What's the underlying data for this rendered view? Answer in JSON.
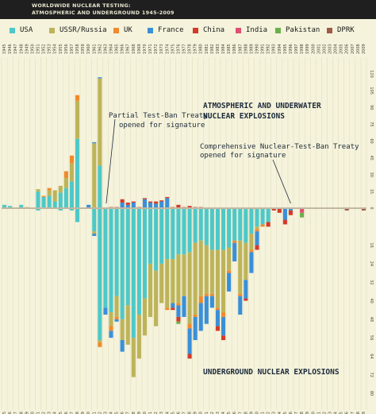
{
  "header": {
    "title_line1": "WORLDWIDE NUCLEAR TESTING:",
    "title_line2": "ATMOSPHERIC AND UNDERGROUND 1945-2009"
  },
  "legend": [
    {
      "label": "USA",
      "color": "#4ec8c8"
    },
    {
      "label": "USSR/Russia",
      "color": "#bdb45a"
    },
    {
      "label": "UK",
      "color": "#f08a2c"
    },
    {
      "label": "France",
      "color": "#3a8fd8"
    },
    {
      "label": "China",
      "color": "#d33a2a"
    },
    {
      "label": "India",
      "color": "#e04f72"
    },
    {
      "label": "Pakistan",
      "color": "#6ab04c"
    },
    {
      "label": "DPRK",
      "color": "#a05a48"
    }
  ],
  "annotations": {
    "atmospheric_line1": "ATMOSPHERIC AND UNDERWATER",
    "atmospheric_line2": "NUCLEAR EXPLOSIONS",
    "ptbt_line1": "Partial Test-Ban Treaty",
    "ptbt_line2": "opened for signature",
    "ctbt_line1": "Comprehensive Nuclear-Test-Ban Treaty",
    "ctbt_line2": "opened for signature",
    "underground": "UNDERGROUND NUCLEAR EXPLOSIONS"
  },
  "chart_data": {
    "type": "bar",
    "stacked": true,
    "diverging": true,
    "x": [
      1945,
      1946,
      1947,
      1948,
      1949,
      1950,
      1951,
      1952,
      1953,
      1954,
      1955,
      1956,
      1957,
      1958,
      1959,
      1960,
      1961,
      1962,
      1963,
      1964,
      1965,
      1966,
      1967,
      1968,
      1969,
      1970,
      1971,
      1972,
      1973,
      1974,
      1975,
      1976,
      1977,
      1978,
      1979,
      1980,
      1981,
      1982,
      1983,
      1984,
      1985,
      1986,
      1987,
      1988,
      1989,
      1990,
      1991,
      1992,
      1993,
      1994,
      1995,
      1996,
      1997,
      1998,
      1999,
      2000,
      2001,
      2002,
      2003,
      2004,
      2005,
      2006,
      2007,
      2008,
      2009
    ],
    "x_ticks": [
      "1945",
      "1946",
      "1947",
      "1948",
      "1949",
      "1950",
      "1951",
      "1952",
      "1953",
      "1954",
      "1955",
      "1956",
      "1957",
      "1958",
      "1959",
      "1960",
      "1961",
      "1962",
      "1963",
      "1964",
      "1965",
      "1966",
      "1967",
      "1968",
      "1969",
      "1970",
      "1971",
      "1972",
      "1973",
      "1974",
      "1975",
      "1976",
      "1977",
      "1978",
      "1979",
      "1980",
      "1981",
      "1982",
      "1983",
      "1984",
      "1985",
      "1986",
      "1987",
      "1988",
      "1989",
      "1990",
      "1991",
      "1992",
      "1993",
      "1994",
      "1995",
      "1996",
      "1997",
      "1998",
      "1999",
      "2000",
      "2001",
      "2002",
      "2003",
      "2004",
      "2005",
      "2006",
      "2007",
      "2008",
      "2009"
    ],
    "y_ticks_up": [
      "120",
      "105",
      "90",
      "75",
      "60",
      "45",
      "30",
      "15",
      "0"
    ],
    "y_ticks_down": [
      "16",
      "24",
      "32",
      "40",
      "48",
      "56",
      "64",
      "72",
      "80"
    ],
    "ylim_up": [
      0,
      120
    ],
    "ylim_down": [
      0,
      80
    ],
    "series_order": [
      "USA",
      "USSR/Russia",
      "UK",
      "France",
      "China",
      "India",
      "Pakistan",
      "DPRK"
    ],
    "atmospheric": [
      [
        3,
        0,
        0,
        0,
        0,
        0,
        0,
        0
      ],
      [
        2,
        0,
        0,
        0,
        0,
        0,
        0,
        0
      ],
      [
        0,
        0,
        0,
        0,
        0,
        0,
        0,
        0
      ],
      [
        3,
        0,
        0,
        0,
        0,
        0,
        0,
        0
      ],
      [
        0,
        1,
        0,
        0,
        0,
        0,
        0,
        0
      ],
      [
        0,
        0,
        0,
        0,
        0,
        0,
        0,
        0
      ],
      [
        15,
        2,
        0,
        0,
        0,
        0,
        0,
        0
      ],
      [
        10,
        0,
        1,
        0,
        0,
        0,
        0,
        0
      ],
      [
        11,
        5,
        2,
        0,
        0,
        0,
        0,
        0
      ],
      [
        6,
        10,
        0,
        0,
        0,
        0,
        0,
        0
      ],
      [
        14,
        6,
        0,
        0,
        0,
        0,
        0,
        0
      ],
      [
        18,
        9,
        6,
        0,
        0,
        0,
        0,
        0
      ],
      [
        24,
        16,
        7,
        0,
        0,
        0,
        0,
        0
      ],
      [
        62,
        34,
        5,
        0,
        0,
        0,
        0,
        0
      ],
      [
        0,
        0,
        0,
        0,
        0,
        0,
        0,
        0
      ],
      [
        0,
        0,
        0,
        3,
        0,
        0,
        0,
        0
      ],
      [
        0,
        58,
        0,
        1,
        0,
        0,
        0,
        0
      ],
      [
        38,
        78,
        0,
        1,
        0,
        0,
        0,
        0
      ],
      [
        0,
        0,
        0,
        0,
        0,
        0,
        0,
        0
      ],
      [
        0,
        0,
        0,
        0,
        1,
        0,
        0,
        0
      ],
      [
        0,
        0,
        0,
        0,
        1,
        0,
        0,
        0
      ],
      [
        0,
        0,
        0,
        5,
        3,
        0,
        0,
        0
      ],
      [
        0,
        0,
        0,
        3,
        2,
        0,
        0,
        0
      ],
      [
        0,
        0,
        0,
        5,
        1,
        0,
        0,
        0
      ],
      [
        0,
        0,
        0,
        0,
        1,
        0,
        0,
        0
      ],
      [
        0,
        0,
        0,
        8,
        1,
        0,
        0,
        0
      ],
      [
        0,
        0,
        0,
        5,
        1,
        0,
        0,
        0
      ],
      [
        0,
        0,
        0,
        4,
        2,
        0,
        0,
        0
      ],
      [
        0,
        0,
        0,
        6,
        1,
        0,
        0,
        0
      ],
      [
        0,
        0,
        0,
        9,
        1,
        0,
        0,
        0
      ],
      [
        0,
        0,
        0,
        0,
        1,
        0,
        0,
        0
      ],
      [
        0,
        0,
        0,
        0,
        3,
        0,
        0,
        0
      ],
      [
        0,
        0,
        0,
        0,
        1,
        0,
        0,
        0
      ],
      [
        0,
        0,
        0,
        0,
        2,
        0,
        0,
        0
      ],
      [
        0,
        0,
        0,
        0,
        1,
        0,
        0,
        0
      ],
      [
        0,
        0,
        0,
        0,
        1,
        0,
        0,
        0
      ]
    ],
    "underground": [
      [
        0,
        0,
        0,
        0,
        0,
        0,
        0,
        0
      ],
      [
        0,
        0,
        0,
        0,
        0,
        0,
        0,
        0
      ],
      [
        0,
        0,
        0,
        0,
        0,
        0,
        0,
        0
      ],
      [
        0,
        0,
        0,
        0,
        0,
        0,
        0,
        0
      ],
      [
        0,
        0,
        0,
        0,
        0,
        0,
        0,
        0
      ],
      [
        0,
        0,
        0,
        0,
        0,
        0,
        0,
        0
      ],
      [
        1,
        0,
        0,
        0,
        0,
        0,
        0,
        0
      ],
      [
        0,
        0,
        0,
        0,
        0,
        0,
        0,
        0
      ],
      [
        0,
        0,
        0,
        0,
        0,
        0,
        0,
        0
      ],
      [
        0,
        0,
        0,
        0,
        0,
        0,
        0,
        0
      ],
      [
        1,
        0,
        0,
        0,
        0,
        0,
        0,
        0
      ],
      [
        0,
        0,
        0,
        0,
        0,
        0,
        0,
        0
      ],
      [
        1,
        0,
        0,
        0,
        0,
        0,
        0,
        0
      ],
      [
        6,
        0,
        0,
        0,
        0,
        0,
        0,
        0
      ],
      [
        0,
        0,
        0,
        0,
        0,
        0,
        0,
        0
      ],
      [
        0,
        0,
        0,
        0,
        0,
        0,
        0,
        0
      ],
      [
        10,
        1,
        0,
        1,
        0,
        0,
        0,
        0
      ],
      [
        57,
        1,
        2,
        0,
        0,
        0,
        0,
        0
      ],
      [
        43,
        0,
        0,
        3,
        0,
        0,
        0,
        0
      ],
      [
        45,
        6,
        2,
        3,
        0,
        0,
        0,
        0
      ],
      [
        38,
        9,
        1,
        1,
        0,
        0,
        0,
        0
      ],
      [
        48,
        9,
        0,
        5,
        0,
        0,
        0,
        0
      ],
      [
        42,
        17,
        0,
        0,
        0,
        0,
        0,
        0
      ],
      [
        56,
        17,
        0,
        0,
        0,
        0,
        0,
        0
      ],
      [
        46,
        19,
        0,
        0,
        0,
        0,
        0,
        0
      ],
      [
        39,
        16,
        0,
        0,
        0,
        0,
        0,
        0
      ],
      [
        24,
        23,
        0,
        0,
        0,
        0,
        0,
        0
      ],
      [
        27,
        24,
        0,
        0,
        0,
        0,
        0,
        0
      ],
      [
        24,
        17,
        0,
        0,
        0,
        0,
        0,
        0
      ],
      [
        22,
        21,
        1,
        0,
        0,
        0,
        0,
        0
      ],
      [
        22,
        19,
        0,
        2,
        1,
        0,
        0,
        0
      ],
      [
        20,
        21,
        1,
        5,
        2,
        0,
        1,
        0
      ],
      [
        20,
        18,
        0,
        9,
        0,
        0,
        0,
        0
      ],
      [
        19,
        31,
        2,
        11,
        2,
        0,
        0,
        0
      ],
      [
        15,
        31,
        1,
        10,
        0,
        0,
        0,
        0
      ],
      [
        14,
        24,
        3,
        12,
        0,
        0,
        0,
        0
      ],
      [
        16,
        21,
        1,
        12,
        0,
        0,
        0,
        0
      ],
      [
        18,
        19,
        1,
        5,
        0,
        0,
        0,
        0
      ],
      [
        18,
        25,
        1,
        7,
        2,
        0,
        0,
        0
      ],
      [
        18,
        27,
        2,
        8,
        2,
        0,
        0,
        0
      ],
      [
        17,
        10,
        1,
        8,
        0,
        0,
        0,
        0
      ],
      [
        14,
        0,
        1,
        8,
        0,
        0,
        0,
        0
      ],
      [
        14,
        23,
        1,
        8,
        0,
        0,
        0,
        0
      ],
      [
        15,
        16,
        0,
        8,
        1,
        0,
        0,
        0
      ],
      [
        11,
        7,
        1,
        9,
        0,
        0,
        0,
        0
      ],
      [
        8,
        1,
        1,
        6,
        2,
        0,
        0,
        0
      ],
      [
        7,
        0,
        1,
        0,
        0,
        0,
        0,
        0
      ],
      [
        6,
        0,
        0,
        0,
        2,
        0,
        0,
        0
      ],
      [
        0,
        0,
        0,
        0,
        1,
        0,
        0,
        0
      ],
      [
        0,
        0,
        0,
        0,
        2,
        0,
        0,
        0
      ],
      [
        0,
        0,
        0,
        5,
        2,
        0,
        0,
        0
      ],
      [
        0,
        0,
        0,
        1,
        2,
        0,
        0,
        0
      ],
      [
        0,
        0,
        0,
        0,
        0,
        0,
        0,
        0
      ],
      [
        0,
        0,
        0,
        0,
        0,
        2,
        2,
        0
      ],
      [
        0,
        0,
        0,
        0,
        0,
        0,
        0,
        0
      ],
      [
        0,
        0,
        0,
        0,
        0,
        0,
        0,
        0
      ],
      [
        0,
        0,
        0,
        0,
        0,
        0,
        0,
        0
      ],
      [
        0,
        0,
        0,
        0,
        0,
        0,
        0,
        0
      ],
      [
        0,
        0,
        0,
        0,
        0,
        0,
        0,
        0
      ],
      [
        0,
        0,
        0,
        0,
        0,
        0,
        0,
        0
      ],
      [
        0,
        0,
        0,
        0,
        0,
        0,
        0,
        0
      ],
      [
        0,
        0,
        0,
        0,
        0,
        0,
        0,
        1
      ],
      [
        0,
        0,
        0,
        0,
        0,
        0,
        0,
        0
      ],
      [
        0,
        0,
        0,
        0,
        0,
        0,
        0,
        0
      ],
      [
        0,
        0,
        0,
        0,
        0,
        0,
        0,
        1
      ]
    ]
  }
}
